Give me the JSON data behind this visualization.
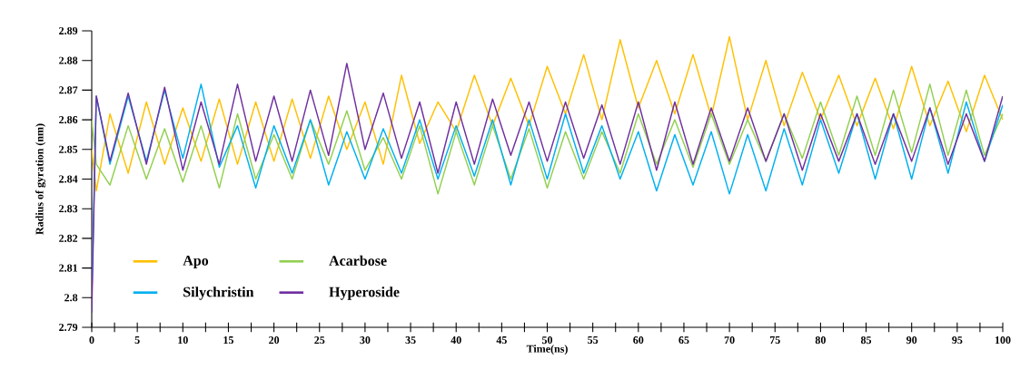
{
  "chart_data": {
    "type": "line",
    "xlabel": "Time(ns)",
    "ylabel": "Radius of gyration  (nm)",
    "marker": "none",
    "legend": "bottom left",
    "xlim": [
      0,
      100
    ],
    "ylim": [
      2.79,
      2.89
    ],
    "xticks": [
      0,
      5,
      10,
      15,
      20,
      25,
      30,
      35,
      40,
      45,
      50,
      55,
      60,
      65,
      70,
      75,
      80,
      85,
      90,
      95,
      100
    ],
    "yticks": [
      2.79,
      2.8,
      2.81,
      2.82,
      2.83,
      2.84,
      2.85,
      2.86,
      2.87,
      2.88,
      2.89
    ],
    "x": [
      0,
      0.5,
      2,
      4,
      6,
      8,
      10,
      12,
      14,
      16,
      18,
      20,
      22,
      24,
      26,
      28,
      30,
      32,
      34,
      36,
      38,
      40,
      42,
      44,
      46,
      48,
      50,
      52,
      54,
      56,
      58,
      60,
      62,
      64,
      66,
      68,
      70,
      72,
      74,
      76,
      78,
      80,
      82,
      84,
      86,
      88,
      90,
      92,
      94,
      96,
      98,
      100
    ],
    "series": [
      {
        "name": "Apo",
        "color": "#ffc000",
        "values": [
          2.85,
          2.836,
          2.862,
          2.842,
          2.866,
          2.845,
          2.864,
          2.846,
          2.867,
          2.845,
          2.866,
          2.846,
          2.867,
          2.847,
          2.868,
          2.85,
          2.866,
          2.845,
          2.875,
          2.852,
          2.866,
          2.856,
          2.875,
          2.858,
          2.874,
          2.858,
          2.878,
          2.862,
          2.882,
          2.86,
          2.887,
          2.864,
          2.88,
          2.862,
          2.882,
          2.861,
          2.888,
          2.86,
          2.88,
          2.858,
          2.876,
          2.86,
          2.875,
          2.858,
          2.874,
          2.857,
          2.878,
          2.858,
          2.873,
          2.856,
          2.875,
          2.86
        ]
      },
      {
        "name": "Acarbose",
        "color": "#92d050",
        "values": [
          2.86,
          2.845,
          2.838,
          2.858,
          2.84,
          2.857,
          2.839,
          2.858,
          2.837,
          2.862,
          2.84,
          2.855,
          2.84,
          2.86,
          2.845,
          2.863,
          2.843,
          2.854,
          2.84,
          2.858,
          2.835,
          2.856,
          2.838,
          2.858,
          2.84,
          2.857,
          2.837,
          2.856,
          2.84,
          2.856,
          2.842,
          2.862,
          2.845,
          2.86,
          2.844,
          2.862,
          2.845,
          2.86,
          2.846,
          2.862,
          2.847,
          2.866,
          2.848,
          2.868,
          2.848,
          2.87,
          2.849,
          2.872,
          2.848,
          2.87,
          2.848,
          2.862
        ]
      },
      {
        "name": "Silychristin",
        "color": "#00b0f0",
        "values": [
          2.8,
          2.868,
          2.845,
          2.868,
          2.846,
          2.87,
          2.847,
          2.872,
          2.844,
          2.858,
          2.837,
          2.858,
          2.842,
          2.86,
          2.838,
          2.856,
          2.84,
          2.857,
          2.842,
          2.86,
          2.84,
          2.858,
          2.841,
          2.86,
          2.838,
          2.86,
          2.84,
          2.862,
          2.842,
          2.858,
          2.84,
          2.856,
          2.836,
          2.855,
          2.838,
          2.856,
          2.835,
          2.855,
          2.836,
          2.857,
          2.838,
          2.86,
          2.842,
          2.862,
          2.84,
          2.862,
          2.84,
          2.864,
          2.842,
          2.866,
          2.846,
          2.865
        ]
      },
      {
        "name": "Hyperoside",
        "color": "#7030a0",
        "values": [
          2.795,
          2.868,
          2.846,
          2.869,
          2.845,
          2.871,
          2.843,
          2.866,
          2.845,
          2.872,
          2.846,
          2.868,
          2.846,
          2.87,
          2.848,
          2.879,
          2.85,
          2.869,
          2.847,
          2.866,
          2.842,
          2.866,
          2.845,
          2.867,
          2.848,
          2.866,
          2.846,
          2.866,
          2.847,
          2.865,
          2.845,
          2.866,
          2.843,
          2.866,
          2.845,
          2.864,
          2.846,
          2.864,
          2.846,
          2.862,
          2.843,
          2.862,
          2.846,
          2.862,
          2.845,
          2.862,
          2.846,
          2.864,
          2.845,
          2.862,
          2.846,
          2.868
        ]
      }
    ]
  }
}
